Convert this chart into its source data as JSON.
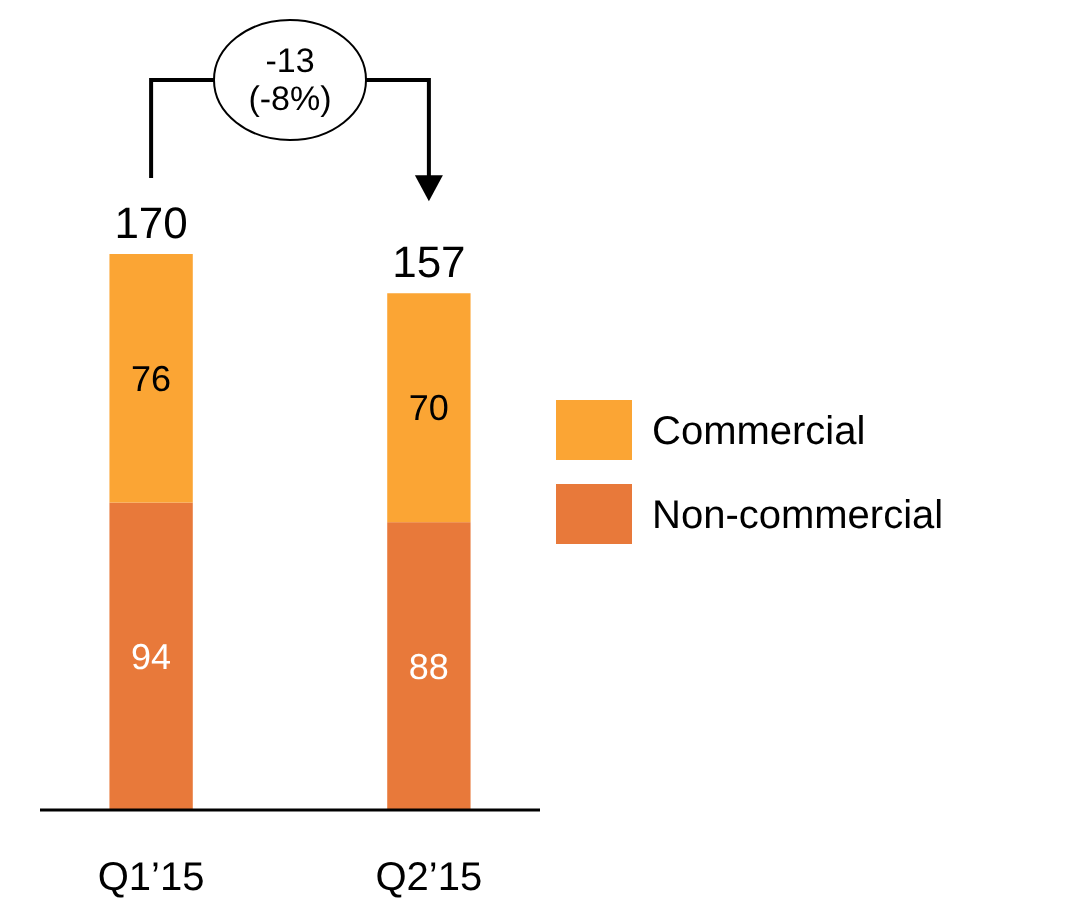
{
  "chart_data": {
    "type": "bar",
    "stacked": true,
    "categories": [
      "Q1’15",
      "Q2’15"
    ],
    "series": [
      {
        "name": "Non-commercial",
        "color": "#e8793a",
        "values": [
          94,
          88
        ]
      },
      {
        "name": "Commercial",
        "color": "#fba534",
        "values": [
          76,
          70
        ]
      }
    ],
    "totals": [
      "170",
      "157"
    ],
    "data_labels": true,
    "legend": "right",
    "annotations": [
      "-13 (-8%)"
    ]
  }
}
